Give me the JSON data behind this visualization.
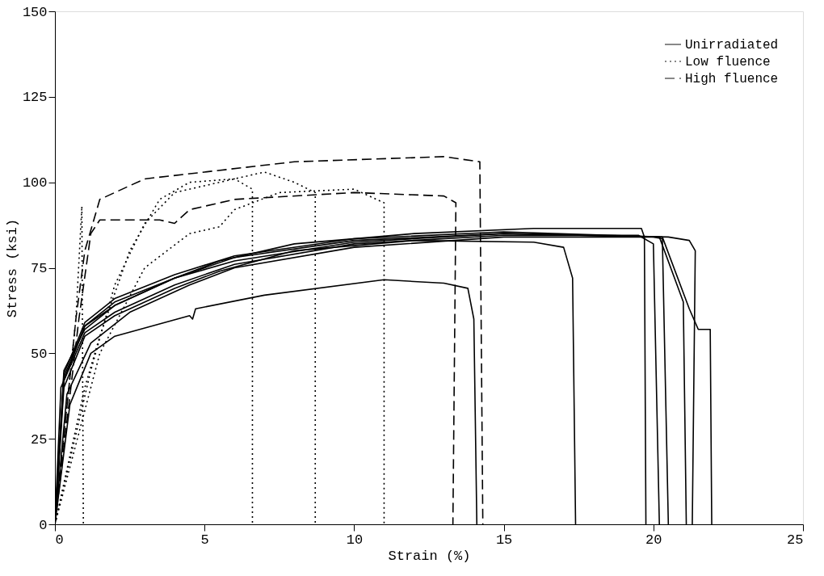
{
  "chart_data": {
    "type": "line",
    "xlabel": "Strain (%)",
    "ylabel": "Stress (ksi)",
    "xlim": [
      0,
      25
    ],
    "xticks": [
      0,
      5,
      10,
      15,
      20,
      25
    ],
    "ylim": [
      0,
      150
    ],
    "yticks": [
      0,
      25,
      50,
      75,
      100,
      125,
      150
    ],
    "grid": false,
    "legend": "top right",
    "marker": "none",
    "series": [
      {
        "name": "Unirradiated",
        "color": "#000000",
        "line_style": "solid",
        "x": [
          0,
          0.5,
          1.2,
          2,
          4.5,
          4.6,
          4.7,
          7,
          11,
          13,
          13.8,
          14.0,
          14.1
        ],
        "values": [
          0,
          35,
          50,
          55,
          61,
          60,
          63,
          67,
          71.5,
          70.5,
          69,
          60,
          0
        ]
      },
      {
        "color": "#000000",
        "line_style": "solid",
        "x": [
          0,
          0.3,
          1,
          2,
          4,
          5.5,
          8,
          12,
          16,
          17.0,
          17.3,
          17.4
        ],
        "values": [
          0,
          40,
          55,
          61,
          69,
          74,
          80,
          83,
          82.5,
          81,
          72,
          0
        ]
      },
      {
        "color": "#000000",
        "line_style": "solid",
        "x": [
          0,
          0.3,
          1,
          2,
          4,
          5.5,
          8,
          12,
          16,
          19.6,
          19.7,
          19.75
        ],
        "values": [
          0,
          45,
          57,
          64,
          72,
          77,
          82,
          85,
          86.5,
          86.5,
          84,
          0
        ]
      },
      {
        "color": "#000000",
        "line_style": "solid",
        "x": [
          0,
          0.2,
          1,
          2,
          4,
          6,
          10,
          15,
          19.5,
          20.0,
          20.2
        ],
        "values": [
          0,
          40,
          56,
          62,
          70,
          76,
          82,
          84.5,
          84.5,
          82,
          0
        ]
      },
      {
        "color": "#000000",
        "line_style": "solid",
        "x": [
          0,
          0.4,
          1.2,
          2.5,
          4.5,
          6,
          10,
          15,
          20.0,
          20.3,
          20.5
        ],
        "values": [
          0,
          38,
          53,
          62,
          70,
          75,
          81,
          84,
          84,
          83.5,
          0
        ]
      },
      {
        "color": "#000000",
        "line_style": "solid",
        "x": [
          0,
          0.3,
          1,
          2,
          4,
          6,
          10,
          15,
          20.2,
          21.0,
          21.1
        ],
        "values": [
          0,
          42,
          58,
          64,
          72,
          78,
          83,
          85,
          84,
          65,
          0
        ]
      },
      {
        "color": "#000000",
        "line_style": "solid",
        "x": [
          0,
          0.3,
          1,
          2,
          4,
          6,
          10,
          15,
          20.3,
          21.2,
          21.5,
          21.9,
          21.95
        ],
        "values": [
          0,
          44,
          59,
          66,
          73,
          78.5,
          83.5,
          85.5,
          84,
          63,
          57,
          57,
          0
        ]
      },
      {
        "color": "#000000",
        "line_style": "solid",
        "x": [
          0,
          0.3,
          1,
          2,
          4,
          6,
          10,
          15,
          20.5,
          21.2,
          21.4,
          21.3
        ],
        "values": [
          0,
          43,
          58,
          65,
          72,
          77,
          82.5,
          85,
          84,
          83,
          80,
          0
        ]
      },
      {
        "name": "Low fluence",
        "color": "#000000",
        "line_style": "dotted",
        "x": [
          0,
          0.7,
          0.9,
          0.95
        ],
        "values": [
          0,
          60,
          93,
          0
        ]
      },
      {
        "color": "#000000",
        "line_style": "dotted",
        "x": [
          0,
          1,
          1.5,
          2.5,
          3.5,
          4.5,
          6,
          6.6,
          6.6
        ],
        "values": [
          0,
          40,
          55,
          80,
          95,
          100,
          101,
          98,
          0
        ]
      },
      {
        "color": "#000000",
        "line_style": "dotted",
        "x": [
          0,
          1.2,
          2,
          3,
          4,
          5.5,
          7,
          8,
          8.7,
          8.7
        ],
        "values": [
          0,
          45,
          70,
          88,
          97,
          100,
          103,
          100,
          97,
          0
        ]
      },
      {
        "color": "#000000",
        "line_style": "dotted",
        "x": [
          0,
          1.5,
          3,
          4.5,
          5.5,
          6,
          7.5,
          10,
          11,
          11
        ],
        "values": [
          0,
          50,
          75,
          85,
          87,
          92,
          97,
          98,
          94,
          0
        ]
      },
      {
        "name": "High fluence",
        "color": "#000000",
        "line_style": "dashed",
        "x": [
          0,
          0.7,
          1.0,
          1.5,
          3,
          5,
          8,
          13,
          14.2,
          14.3
        ],
        "values": [
          0,
          60,
          80,
          95,
          101,
          103,
          106,
          107.5,
          106,
          0
        ]
      },
      {
        "color": "#000000",
        "line_style": "dashed",
        "x": [
          0,
          0.8,
          1.2,
          1.5,
          3.5,
          4,
          4.5,
          6,
          10,
          13,
          13.4,
          13.3
        ],
        "values": [
          0,
          60,
          85,
          89,
          89,
          88,
          92,
          95,
          97,
          96,
          94,
          0
        ]
      }
    ]
  }
}
